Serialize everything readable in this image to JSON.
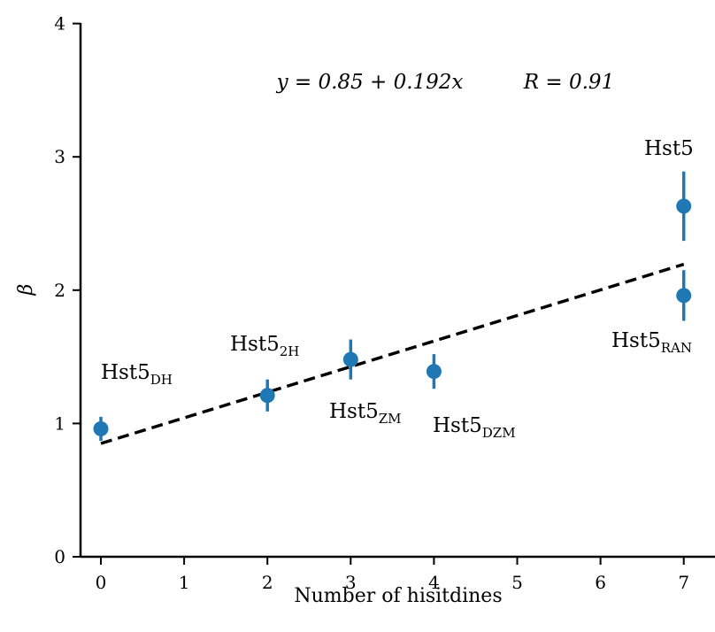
{
  "chart_data": {
    "type": "scatter",
    "xlabel": "Number of hisitdines",
    "ylabel": "β",
    "xlim": [
      -0.25,
      7.3
    ],
    "ylim": [
      0,
      4
    ],
    "xticks": [
      "0",
      "1",
      "2",
      "3",
      "4",
      "5",
      "6",
      "7"
    ],
    "yticks": [
      "0",
      "1",
      "2",
      "3",
      "4"
    ],
    "points": [
      {
        "x": 0,
        "y": 0.96,
        "err": 0.09
      },
      {
        "x": 2,
        "y": 1.21,
        "err": 0.12
      },
      {
        "x": 3,
        "y": 1.48,
        "err": 0.15
      },
      {
        "x": 4,
        "y": 1.39,
        "err": 0.13
      },
      {
        "x": 7,
        "y": 1.96,
        "err": 0.19
      },
      {
        "x": 7,
        "y": 2.63,
        "err": 0.26
      }
    ],
    "labels": [
      {
        "base": "Hst5",
        "sub": "DH"
      },
      {
        "base": "Hst5",
        "sub": "2H"
      },
      {
        "base": "Hst5",
        "sub": "ZM"
      },
      {
        "base": "Hst5",
        "sub": "DZM"
      },
      {
        "base": "Hst5",
        "sub": "RAN"
      },
      {
        "base": "Hst5",
        "sub": ""
      }
    ],
    "fit": {
      "intercept": 0.85,
      "slope": 0.192,
      "x_range": [
        0,
        7
      ]
    },
    "equation_text": "y = 0.85 + 0.192x",
    "r_text": "R = 0.91",
    "point_color": "#1f77b4",
    "fit_color": "#000000"
  }
}
